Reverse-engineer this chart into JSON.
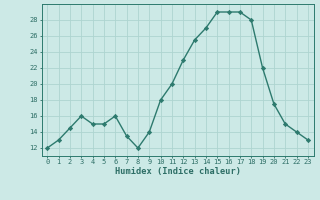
{
  "x": [
    0,
    1,
    2,
    3,
    4,
    5,
    6,
    7,
    8,
    9,
    10,
    11,
    12,
    13,
    14,
    15,
    16,
    17,
    18,
    19,
    20,
    21,
    22,
    23
  ],
  "y": [
    12,
    13,
    14.5,
    16,
    15,
    15,
    16,
    13.5,
    12,
    14,
    18,
    20,
    23,
    25.5,
    27,
    29,
    29,
    29,
    28,
    22,
    17.5,
    15,
    14,
    13
  ],
  "xlabel": "Humidex (Indice chaleur)",
  "ylim": [
    11,
    30
  ],
  "xlim": [
    -0.5,
    23.5
  ],
  "yticks": [
    12,
    14,
    16,
    18,
    20,
    22,
    24,
    26,
    28
  ],
  "xticks": [
    0,
    1,
    2,
    3,
    4,
    5,
    6,
    7,
    8,
    9,
    10,
    11,
    12,
    13,
    14,
    15,
    16,
    17,
    18,
    19,
    20,
    21,
    22,
    23
  ],
  "line_color": "#2d7a6e",
  "marker": "D",
  "marker_size": 2.2,
  "line_width": 1.0,
  "bg_color": "#cce9e6",
  "grid_color": "#aed4d0",
  "text_color": "#2d6e66",
  "tick_fontsize": 5.0,
  "xlabel_fontsize": 6.2
}
